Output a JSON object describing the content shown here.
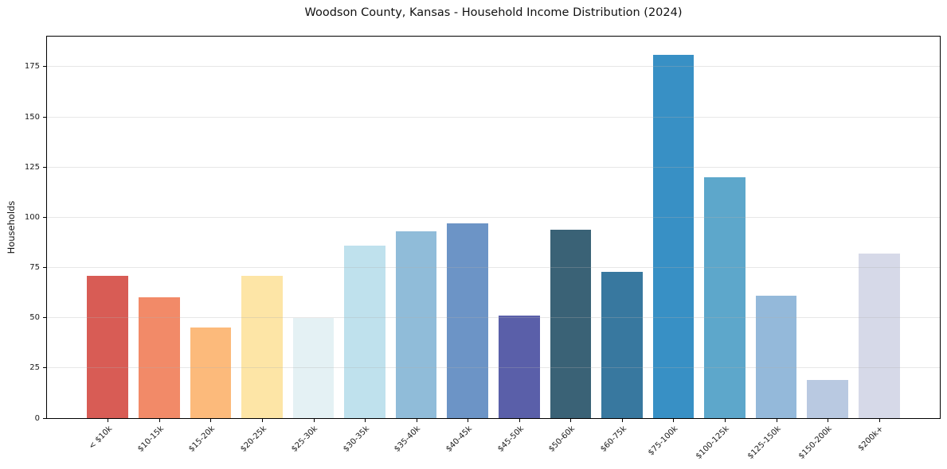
{
  "figure": {
    "background_color": "#ffffff",
    "frame_color": "#000000",
    "gridline_rgba": "rgba(176,176,176,0.3)"
  },
  "chart_data": {
    "type": "bar",
    "title": "Woodson County, Kansas - Household Income Distribution (2024)",
    "xlabel": "",
    "ylabel": "Households",
    "categories": [
      "< $10k",
      "$10-15k",
      "$15-20k",
      "$20-25k",
      "$25-30k",
      "$30-35k",
      "$35-40k",
      "$40-45k",
      "$45-50k",
      "$50-60k",
      "$60-75k",
      "$75-100k",
      "$100-125k",
      "$125-150k",
      "$150-200k",
      "$200k+"
    ],
    "values": [
      71,
      60,
      45,
      71,
      50,
      86,
      93,
      97,
      51,
      94,
      73,
      181,
      120,
      61,
      19,
      82
    ],
    "bar_colors": [
      "#d85c55",
      "#f28a68",
      "#fcba7b",
      "#fde5a6",
      "#e4f1f4",
      "#bfe1ed",
      "#90bcd9",
      "#6c94c6",
      "#5a5fa9",
      "#3a6276",
      "#38789f",
      "#3890c5",
      "#5da7cb",
      "#94b9da",
      "#b9c9e1",
      "#d6d9e8"
    ],
    "ylim": [
      0,
      190
    ],
    "yticks": [
      0,
      25,
      50,
      75,
      100,
      125,
      150,
      175
    ],
    "grid": "horizontal",
    "legend_position": "none",
    "xtick_rotation_deg": 45
  }
}
